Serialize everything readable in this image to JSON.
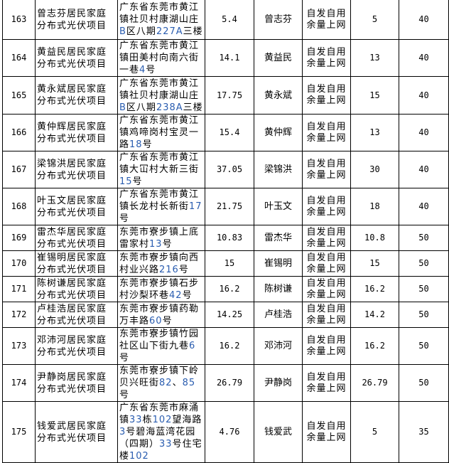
{
  "colors": {
    "border": "#000000",
    "address_number": "#2a5db0"
  },
  "rows": [
    {
      "no": "163",
      "project": "曾志芬居民家庭分布式光伏项目",
      "address": "广东省东莞市黄江镇社贝村康湖山庄B区八期227A三楼",
      "capacity": "5.4",
      "owner": "曾志芬",
      "mode": "自发自用余量上网",
      "value1": "5",
      "value2": "40"
    },
    {
      "no": "164",
      "project": "黄益民居民家庭分布式光伏项目",
      "address": "广东省东莞市黄江镇田美村向南六街一巷4号",
      "capacity": "14.1",
      "owner": "黄益民",
      "mode": "自发自用余量上网",
      "value1": "13",
      "value2": "40"
    },
    {
      "no": "165",
      "project": "黄永斌居民家庭分布式光伏项目",
      "address": "广东省东莞市黄江镇社贝村康湖山庄B区八期238A三楼",
      "capacity": "17.75",
      "owner": "黄永斌",
      "mode": "自发自用余量上网",
      "value1": "15",
      "value2": "40"
    },
    {
      "no": "166",
      "project": "黄仲辉居民家庭分布式光伏项目",
      "address": "广东省东莞市黄江镇鸡啼岗村宝灵一路18号",
      "capacity": "15.4",
      "owner": "黄仲辉",
      "mode": "自发自用余量上网",
      "value1": "13",
      "value2": "40"
    },
    {
      "no": "167",
      "project": "梁锦洪居民家庭分布式光伏项目",
      "address": "广东省东莞市黄江镇大冚村大新三街15号",
      "capacity": "37.05",
      "owner": "梁锦洪",
      "mode": "自发自用余量上网",
      "value1": "30",
      "value2": "40"
    },
    {
      "no": "168",
      "project": "叶玉文居民家庭分布式光伏项目",
      "address": "广东省东莞市黄江镇长龙村长新街17号",
      "capacity": "21.75",
      "owner": "叶玉文",
      "mode": "自发自用余量上网",
      "value1": "18",
      "value2": "40"
    },
    {
      "no": "169",
      "project": "雷杰华居民家庭分布式光伏项目",
      "address": "东莞市寮步镇上底雷家村13号",
      "capacity": "10.83",
      "owner": "雷杰华",
      "mode": "自发自用余量上网",
      "value1": "10.8",
      "value2": "50"
    },
    {
      "no": "170",
      "project": "崔锡明居民家庭分布式光伏项目",
      "address": "东莞市寮步镇向西村业兴路216号",
      "capacity": "15",
      "owner": "崔锡明",
      "mode": "自发自用余量上网",
      "value1": "15",
      "value2": "50"
    },
    {
      "no": "171",
      "project": "陈树谦居民家庭分布式光伏项目",
      "address": "东莞市寮步镇石步村沙梨环巷42号",
      "capacity": "16.2",
      "owner": "陈树谦",
      "mode": "自发自用余量上网",
      "value1": "16.2",
      "value2": "50"
    },
    {
      "no": "172",
      "project": "卢桂浩居民家庭分布式光伏项目",
      "address": "东莞市寮步镇药勒万丰路60号",
      "capacity": "14.25",
      "owner": "卢桂浩",
      "mode": "自发自用余量上网",
      "value1": "14.2",
      "value2": "50"
    },
    {
      "no": "173",
      "project": "邓沛河居民家庭分布式光伏项目",
      "address": "东莞市寮步镇竹园社区山下街九巷6号",
      "capacity": "16.2",
      "owner": "邓沛河",
      "mode": "自发自用余量上网",
      "value1": "16.2",
      "value2": "50"
    },
    {
      "no": "174",
      "project": "尹静岗居民家庭分布式光伏项目",
      "address": "东莞市寮步镇下岭贝兴旺街82、85号",
      "capacity": "26.79",
      "owner": "尹静岗",
      "mode": "自发自用余量上网",
      "value1": "26.79",
      "value2": "50"
    },
    {
      "no": "175",
      "project": "钱爱武居民家庭分布式光伏项目",
      "address": "广东省东莞市麻涌镇33栋102望海路3号碧海蓝湾花园（四期）33号住宅楼102",
      "capacity": "4.76",
      "owner": "钱爱武",
      "mode": "自发自用余量上网",
      "value1": "5",
      "value2": "35"
    }
  ]
}
